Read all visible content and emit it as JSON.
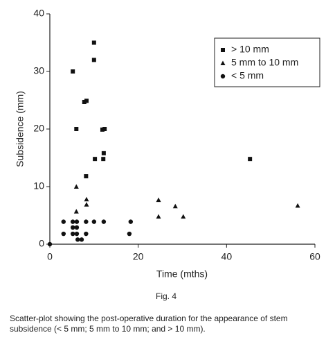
{
  "chart_data": {
    "type": "scatter",
    "xlabel": "Time (mths)",
    "ylabel": "Subsidence (mm)",
    "xlim": [
      0,
      60
    ],
    "ylim": [
      0,
      40
    ],
    "xticks": [
      0,
      20,
      40,
      60
    ],
    "yticks": [
      0,
      10,
      20,
      30,
      40
    ],
    "legend": "upper right",
    "series": [
      {
        "name": "> 10 mm",
        "marker": "square",
        "color": "#111111",
        "x": [
          5.2,
          6.0,
          7.8,
          8.3,
          8.2,
          10.0,
          10.0,
          10.2,
          11.9,
          12.4,
          12.1,
          12.2,
          45.3
        ],
        "values": [
          30,
          20,
          24.7,
          24.9,
          11.8,
          35,
          32,
          14.8,
          19.9,
          20,
          14.8,
          15.8,
          14.8
        ]
      },
      {
        "name": "5 mm to 10 mm",
        "marker": "triangle",
        "color": "#111111",
        "x": [
          6.0,
          6.0,
          8.3,
          8.3,
          24.6,
          24.6,
          28.4,
          30.2,
          56.1
        ],
        "values": [
          10,
          5.7,
          7.8,
          6.9,
          7.7,
          4.8,
          6.6,
          4.8,
          6.7
        ]
      },
      {
        "name": "< 5 mm",
        "marker": "circle",
        "color": "#111111",
        "x": [
          0,
          3.1,
          3.1,
          5.2,
          5.2,
          5.2,
          6.1,
          6.1,
          6.1,
          6.3,
          7.2,
          8.2,
          8.2,
          10.0,
          12.2,
          18.0,
          18.3
        ],
        "values": [
          0,
          3.9,
          1.8,
          3.9,
          2.9,
          1.8,
          3.9,
          2.9,
          1.8,
          0.8,
          0.8,
          3.9,
          1.8,
          3.9,
          3.9,
          1.8,
          3.9
        ]
      }
    ]
  },
  "figure_label": "Fig. 4",
  "caption": "Scatter-plot showing the post-operative duration for the appearance of stem subsidence (< 5 mm; 5 mm to 10 mm; and > 10 mm)."
}
